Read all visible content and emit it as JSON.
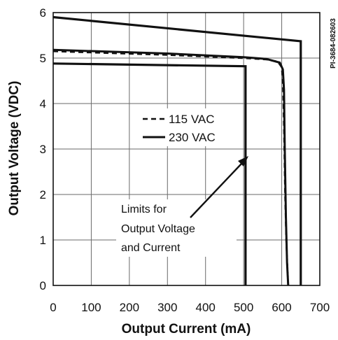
{
  "chart_data": {
    "type": "line",
    "xlabel": "Output Current (mA)",
    "ylabel": "Output Voltage (VDC)",
    "xlim": [
      0,
      700
    ],
    "ylim": [
      0,
      6
    ],
    "xticks": [
      "0",
      "100",
      "200",
      "300",
      "400",
      "500",
      "600",
      "700"
    ],
    "yticks": [
      "0",
      "1",
      "2",
      "3",
      "4",
      "5",
      "6"
    ],
    "grid": true,
    "legend_position": "center",
    "legend": [
      {
        "label": "115 VAC",
        "style": "dashed"
      },
      {
        "label": "230 VAC",
        "style": "solid"
      }
    ],
    "series": [
      {
        "name": "115 VAC",
        "style": "dashed",
        "points": [
          [
            0,
            5.15
          ],
          [
            300,
            5.07
          ],
          [
            500,
            5.0
          ],
          [
            560,
            4.97
          ],
          [
            590,
            4.92
          ],
          [
            600,
            4.8
          ],
          [
            603,
            4.5
          ],
          [
            606,
            3.5
          ],
          [
            609,
            2.0
          ],
          [
            612,
            1.0
          ],
          [
            617,
            0
          ]
        ]
      },
      {
        "name": "230 VAC",
        "style": "solid",
        "points": [
          [
            0,
            5.18
          ],
          [
            300,
            5.1
          ],
          [
            500,
            5.02
          ],
          [
            560,
            4.98
          ],
          [
            595,
            4.9
          ],
          [
            603,
            4.75
          ],
          [
            606,
            4.3
          ],
          [
            608,
            3.0
          ],
          [
            611,
            1.5
          ],
          [
            614,
            0.5
          ],
          [
            617,
            0
          ]
        ]
      }
    ],
    "limit_lines": [
      {
        "label": "upper limit",
        "points": [
          [
            0,
            5.9
          ],
          [
            650,
            5.37
          ],
          [
            650,
            0
          ]
        ]
      },
      {
        "label": "lower limit",
        "points": [
          [
            0,
            4.88
          ],
          [
            505,
            4.82
          ],
          [
            505,
            0
          ]
        ]
      }
    ],
    "annotation": {
      "lines": [
        "Limits for",
        "Output Voltage",
        "and Current"
      ],
      "arrow_to": [
        505,
        2.85
      ]
    },
    "figure_code": "PI-3684-082603"
  }
}
